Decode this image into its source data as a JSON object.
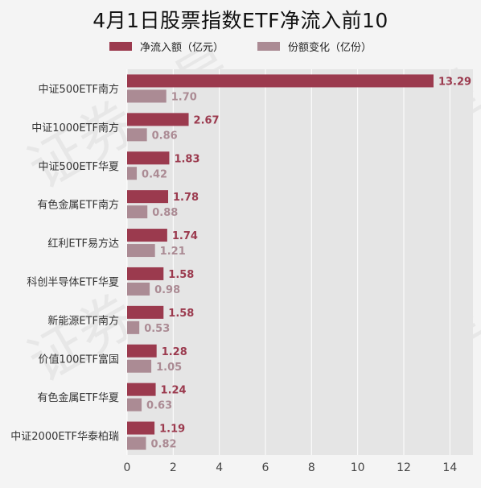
{
  "title": "4月1日股票指数ETF净流入前10",
  "colors": {
    "primary": "#9b3a4e",
    "secondary": "#ab8b94",
    "plot_bg": "#e5e5e5",
    "grid": "#ffffff"
  },
  "legend": [
    {
      "label": "净流入额（亿元）",
      "color": "#9b3a4e"
    },
    {
      "label": "份额变化（亿份）",
      "color": "#ab8b94"
    }
  ],
  "watermark_text": "证券之星",
  "chart_data": {
    "type": "bar",
    "orientation": "horizontal",
    "title": "4月1日股票指数ETF净流入前10",
    "categories": [
      "中证500ETF南方",
      "中证1000ETF南方",
      "中证500ETF华夏",
      "有色金属ETF南方",
      "红利ETF易方达",
      "科创半导体ETF华夏",
      "新能源ETF南方",
      "价值100ETF富国",
      "有色金属ETF华夏",
      "中证2000ETF华泰柏瑞"
    ],
    "series": [
      {
        "name": "净流入额（亿元）",
        "values": [
          13.29,
          2.67,
          1.83,
          1.78,
          1.74,
          1.58,
          1.58,
          1.28,
          1.24,
          1.19
        ],
        "labels": [
          "13.29",
          "2.67",
          "1.83",
          "1.78",
          "1.74",
          "1.58",
          "1.58",
          "1.28",
          "1.24",
          "1.19"
        ]
      },
      {
        "name": "份额变化（亿份）",
        "values": [
          1.7,
          0.86,
          0.42,
          0.88,
          1.21,
          0.98,
          0.53,
          1.05,
          0.63,
          0.82
        ],
        "labels": [
          "1.70",
          "0.86",
          "0.42",
          "0.88",
          "1.21",
          "0.98",
          "0.53",
          "1.05",
          "0.63",
          "0.82"
        ]
      }
    ],
    "xlim": [
      0,
      15
    ],
    "xticks": [
      "0",
      "2",
      "4",
      "6",
      "8",
      "10",
      "12",
      "14"
    ],
    "xlabel": "",
    "ylabel": "",
    "grid": true,
    "legend_position": "top"
  }
}
